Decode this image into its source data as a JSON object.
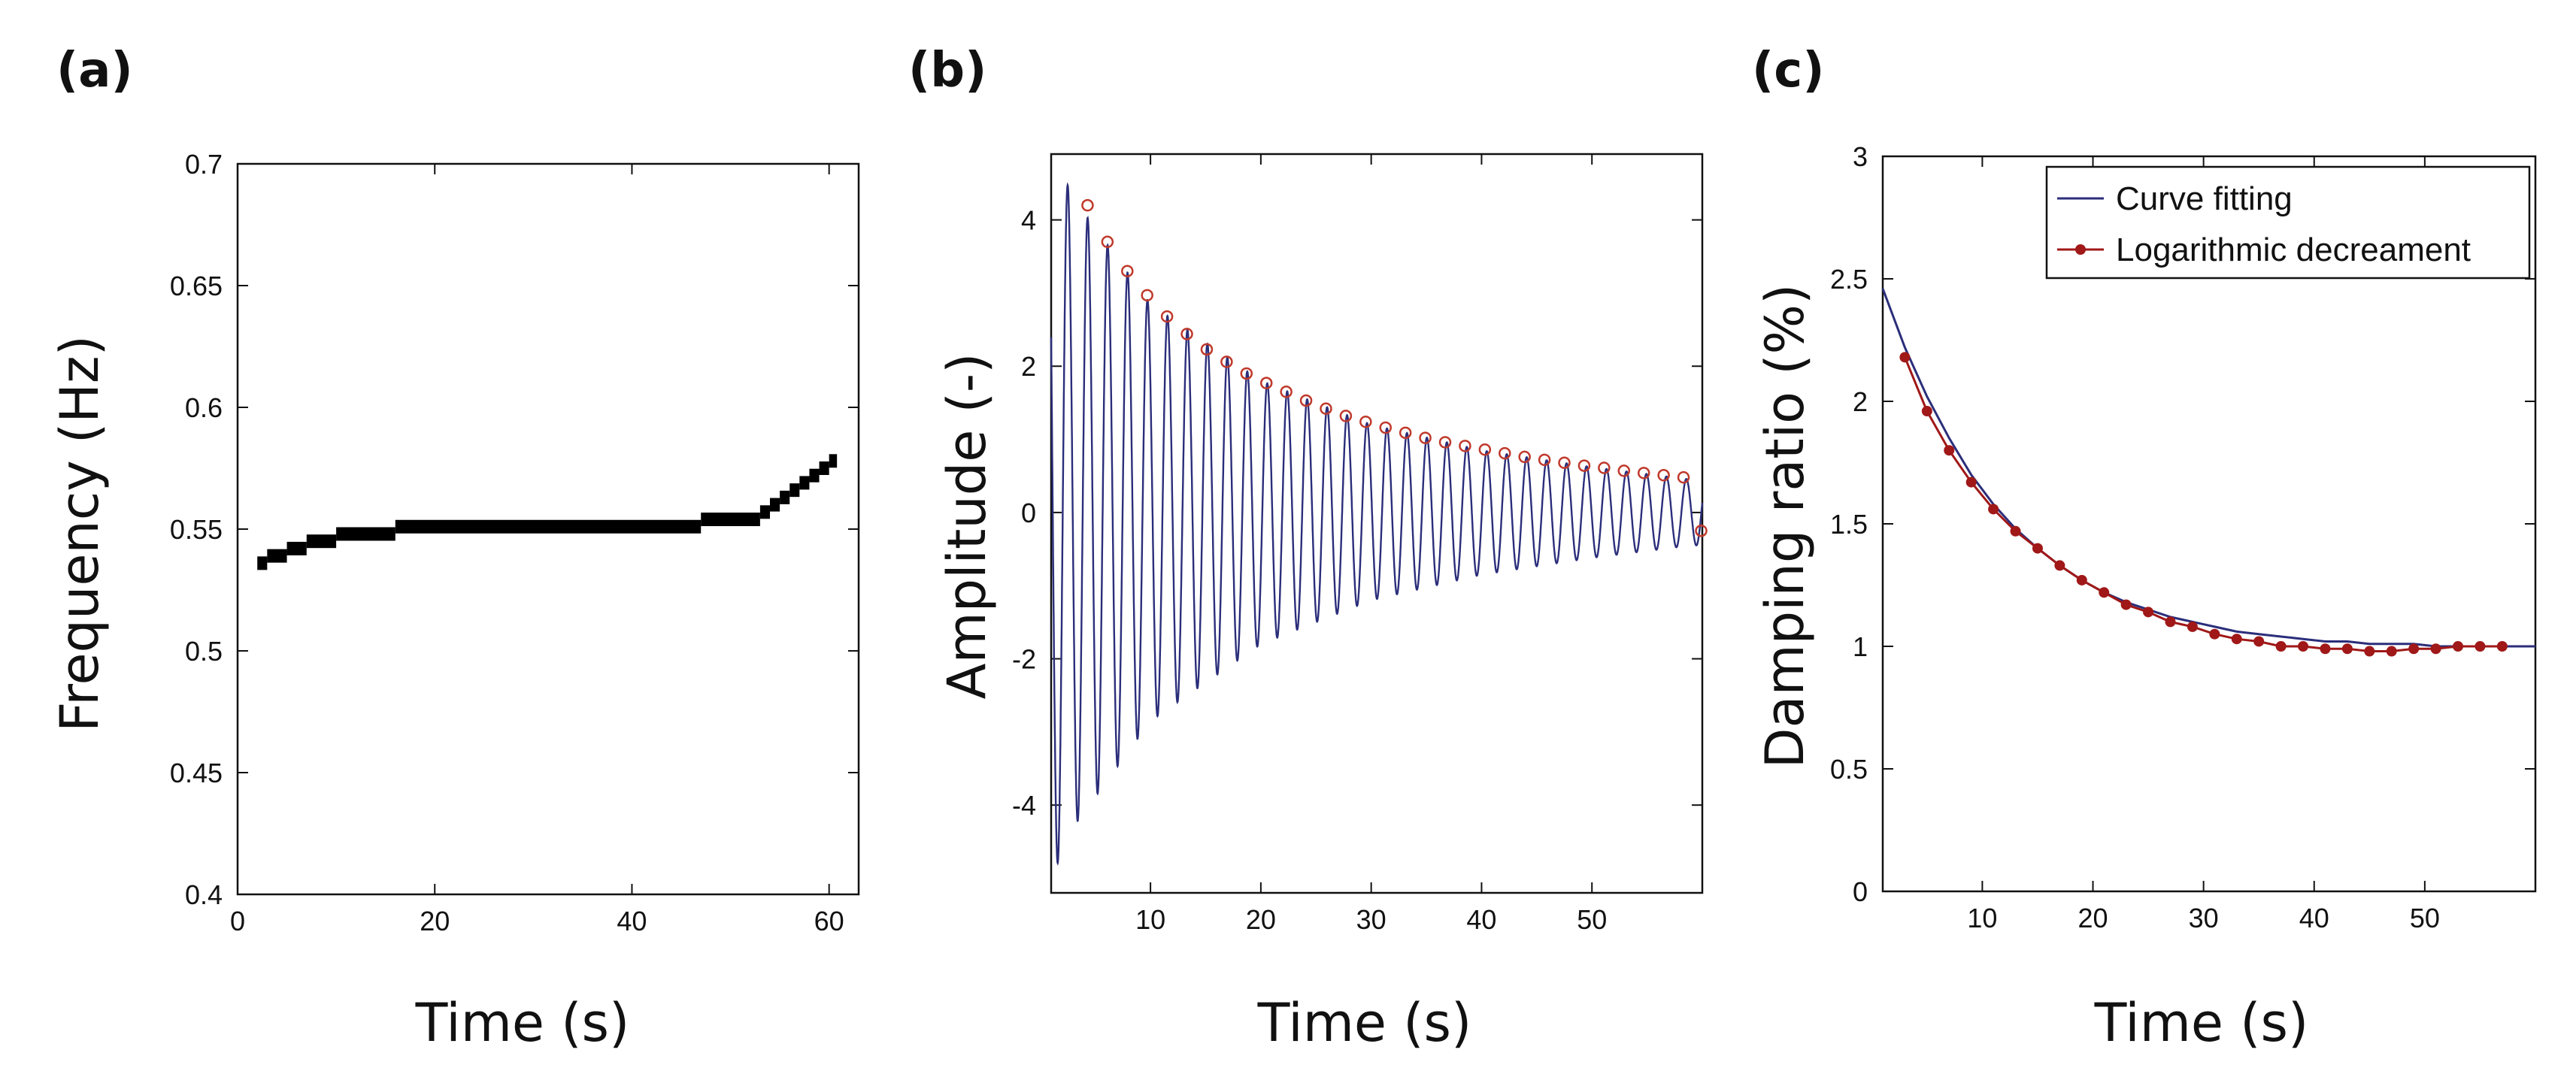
{
  "chart_data": [
    {
      "panel": "(a)",
      "type": "line",
      "xlabel": "Time (s)",
      "ylabel": "Frequency (Hz)",
      "xlim": [
        0,
        63
      ],
      "ylim": [
        0.4,
        0.7
      ],
      "xticks": [
        0,
        20,
        40,
        60
      ],
      "xtick_labels": [
        "0",
        "20",
        "40",
        "60"
      ],
      "yticks": [
        0.4,
        0.45,
        0.5,
        0.55,
        0.6,
        0.65,
        0.7
      ],
      "ytick_labels": [
        "0.4",
        "0.45",
        "0.5",
        "0.55",
        "0.6",
        "0.65",
        "0.7"
      ],
      "series": [
        {
          "name": "Frequency",
          "color": "#000000",
          "style": "step",
          "x": [
            2,
            3,
            5,
            7,
            10,
            16,
            47,
            53,
            54,
            55,
            56,
            57,
            58,
            59,
            60
          ],
          "y": [
            0.536,
            0.539,
            0.542,
            0.545,
            0.548,
            0.551,
            0.554,
            0.557,
            0.56,
            0.563,
            0.566,
            0.569,
            0.572,
            0.575,
            0.578
          ]
        }
      ]
    },
    {
      "panel": "(b)",
      "type": "line",
      "xlabel": "Time (s)",
      "ylabel": "Amplitude (-)",
      "xlim": [
        1,
        60
      ],
      "ylim": [
        -5.2,
        4.9
      ],
      "xticks": [
        10,
        20,
        30,
        40,
        50
      ],
      "xtick_labels": [
        "10",
        "20",
        "30",
        "40",
        "50"
      ],
      "yticks": [
        -4,
        -2,
        0,
        2,
        4
      ],
      "ytick_labels": [
        "-4",
        "-2",
        "0",
        "2",
        "4"
      ],
      "signal": {
        "name": "Amplitude",
        "color": "#2b2e7a",
        "frequency_hz": 0.553,
        "envelope_times": [
          1,
          3,
          10,
          20,
          30,
          40,
          50,
          59
        ],
        "envelope_values": [
          5.0,
          4.3,
          2.85,
          1.8,
          1.2,
          0.85,
          0.62,
          0.45
        ]
      },
      "peaks": {
        "name": "Peaks",
        "color": "#c0392b",
        "x": [
          4.3,
          6.1,
          7.9,
          9.7,
          11.5,
          13.3,
          15.1,
          16.9,
          18.7,
          20.5,
          22.3,
          24.1,
          25.9,
          27.7,
          29.5,
          31.3,
          33.1,
          34.9,
          36.7,
          38.5,
          40.3,
          42.1,
          43.9,
          45.7,
          47.5,
          49.3,
          51.1,
          52.9,
          54.7,
          56.5,
          58.3,
          59.9
        ],
        "y": [
          4.2,
          3.7,
          3.3,
          2.97,
          2.68,
          2.44,
          2.23,
          2.06,
          1.9,
          1.77,
          1.65,
          1.53,
          1.42,
          1.32,
          1.24,
          1.16,
          1.09,
          1.02,
          0.96,
          0.91,
          0.86,
          0.81,
          0.76,
          0.72,
          0.68,
          0.64,
          0.61,
          0.57,
          0.54,
          0.51,
          0.48,
          -0.25
        ]
      }
    },
    {
      "panel": "(c)",
      "type": "line",
      "xlabel": "Time (s)",
      "ylabel": "Damping ratio (%)",
      "xlim": [
        1,
        60
      ],
      "ylim": [
        0,
        3
      ],
      "xticks": [
        10,
        20,
        30,
        40,
        50
      ],
      "xtick_labels": [
        "10",
        "20",
        "30",
        "40",
        "50"
      ],
      "yticks": [
        0,
        0.5,
        1,
        1.5,
        2,
        2.5,
        3
      ],
      "ytick_labels": [
        "0",
        "0.5",
        "1",
        "1.5",
        "2",
        "2.5",
        "3"
      ],
      "legend": {
        "position": "top-right",
        "entries": [
          "Curve fitting",
          "Logarithmic decreament"
        ]
      },
      "series": [
        {
          "name": "Curve fitting",
          "color": "#2b2e7a",
          "x": [
            1,
            3,
            5,
            7,
            9,
            11,
            13,
            15,
            17,
            19,
            21,
            23,
            25,
            27,
            29,
            31,
            33,
            35,
            37,
            39,
            41,
            43,
            45,
            47,
            49,
            51,
            53,
            55,
            57,
            59,
            60
          ],
          "y": [
            2.46,
            2.22,
            2.02,
            1.85,
            1.7,
            1.58,
            1.48,
            1.4,
            1.33,
            1.27,
            1.22,
            1.18,
            1.15,
            1.12,
            1.1,
            1.08,
            1.06,
            1.05,
            1.04,
            1.03,
            1.02,
            1.02,
            1.01,
            1.01,
            1.01,
            1.0,
            1.0,
            1.0,
            1.0,
            1.0,
            1.0
          ]
        },
        {
          "name": "Logarithmic decreament",
          "color": "#a01818",
          "x": [
            3,
            5,
            7,
            9,
            11,
            13,
            15,
            17,
            19,
            21,
            23,
            25,
            27,
            29,
            31,
            33,
            35,
            37,
            39,
            41,
            43,
            45,
            47,
            49,
            51,
            53,
            55,
            57
          ],
          "y": [
            2.18,
            1.96,
            1.8,
            1.67,
            1.56,
            1.47,
            1.4,
            1.33,
            1.27,
            1.22,
            1.17,
            1.14,
            1.1,
            1.08,
            1.05,
            1.03,
            1.02,
            1.0,
            1.0,
            0.99,
            0.99,
            0.98,
            0.98,
            0.99,
            0.99,
            1.0,
            1.0,
            1.0
          ]
        }
      ]
    }
  ]
}
